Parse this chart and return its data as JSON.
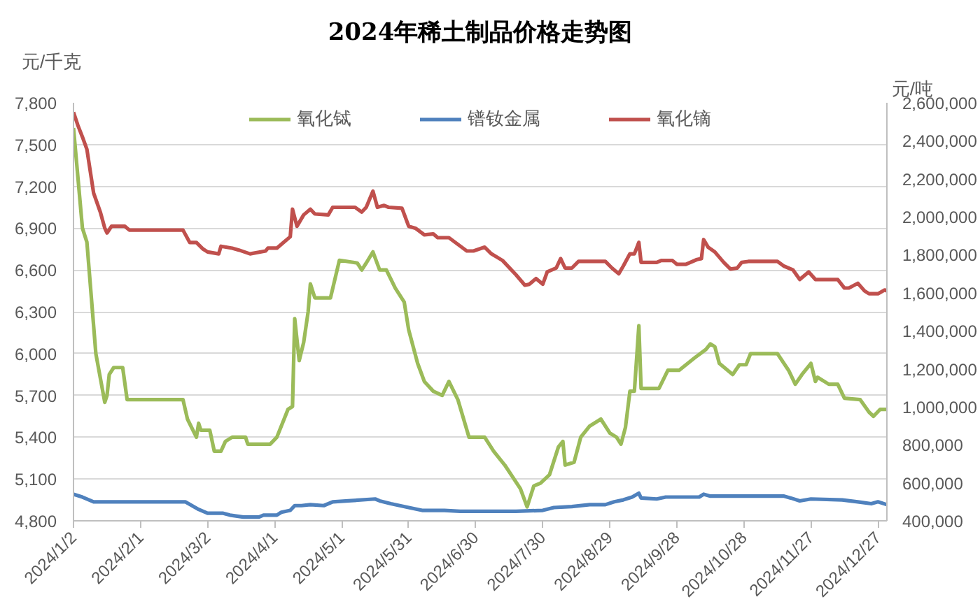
{
  "chart_data": {
    "type": "line",
    "title": "2024年稀土制品价格走势图",
    "ylabel": "元/千克",
    "y2label": "元/吨",
    "xlim": [
      "2024-01-02",
      "2024-12-31"
    ],
    "xticks": [
      {
        "value": "2024-01-02",
        "label": "2024/1/2"
      },
      {
        "value": "2024-02-01",
        "label": "2024/2/1"
      },
      {
        "value": "2024-03-02",
        "label": "2024/3/2"
      },
      {
        "value": "2024-04-01",
        "label": "2024/4/1"
      },
      {
        "value": "2024-05-01",
        "label": "2024/5/1"
      },
      {
        "value": "2024-05-31",
        "label": "2024/5/31"
      },
      {
        "value": "2024-06-30",
        "label": "2024/6/30"
      },
      {
        "value": "2024-07-30",
        "label": "2024/7/30"
      },
      {
        "value": "2024-08-29",
        "label": "2024/8/29"
      },
      {
        "value": "2024-09-28",
        "label": "2024/9/28"
      },
      {
        "value": "2024-10-28",
        "label": "2024/10/28"
      },
      {
        "value": "2024-11-27",
        "label": "2024/11/27"
      },
      {
        "value": "2024-12-27",
        "label": "2024/12/27"
      }
    ],
    "ylim": [
      4800,
      7800
    ],
    "yticks": [
      {
        "value": 4800,
        "label": "4,800"
      },
      {
        "value": 5100,
        "label": "5,100"
      },
      {
        "value": 5400,
        "label": "5,400"
      },
      {
        "value": 5700,
        "label": "5,700"
      },
      {
        "value": 6000,
        "label": "6,000"
      },
      {
        "value": 6300,
        "label": "6,300"
      },
      {
        "value": 6600,
        "label": "6,600"
      },
      {
        "value": 6900,
        "label": "6,900"
      },
      {
        "value": 7200,
        "label": "7,200"
      },
      {
        "value": 7500,
        "label": "7,500"
      },
      {
        "value": 7800,
        "label": "7,800"
      }
    ],
    "y2lim": [
      400000,
      2600000
    ],
    "y2ticks": [
      {
        "value": 400000,
        "label": "400,000"
      },
      {
        "value": 600000,
        "label": "600,000"
      },
      {
        "value": 800000,
        "label": "800,000"
      },
      {
        "value": 1000000,
        "label": "1,000,000"
      },
      {
        "value": 1200000,
        "label": "1,200,000"
      },
      {
        "value": 1400000,
        "label": "1,400,000"
      },
      {
        "value": 1600000,
        "label": "1,600,000"
      },
      {
        "value": 1800000,
        "label": "1,800,000"
      },
      {
        "value": 2000000,
        "label": "2,000,000"
      },
      {
        "value": 2200000,
        "label": "2,200,000"
      },
      {
        "value": 2400000,
        "label": "2,400,000"
      },
      {
        "value": 2600000,
        "label": "2,600,000"
      }
    ],
    "grid": "y",
    "legend": "top",
    "line_style": "solid",
    "series": [
      {
        "name": "氧化铽",
        "color": "#9bbb59",
        "x": [
          "2024-01-02",
          "2024-01-06",
          "2024-01-08",
          "2024-01-12",
          "2024-01-16",
          "2024-01-17",
          "2024-01-18",
          "2024-01-20",
          "2024-01-24",
          "2024-01-26",
          "2024-02-20",
          "2024-02-22",
          "2024-02-26",
          "2024-02-27",
          "2024-02-28",
          "2024-03-03",
          "2024-03-05",
          "2024-03-08",
          "2024-03-10",
          "2024-03-13",
          "2024-03-19",
          "2024-03-20",
          "2024-03-30",
          "2024-04-02",
          "2024-04-05",
          "2024-04-07",
          "2024-04-09",
          "2024-04-10",
          "2024-04-12",
          "2024-04-14",
          "2024-04-16",
          "2024-04-17",
          "2024-04-19",
          "2024-04-26",
          "2024-04-30",
          "2024-05-08",
          "2024-05-10",
          "2024-05-12",
          "2024-05-15",
          "2024-05-18",
          "2024-05-21",
          "2024-05-25",
          "2024-05-29",
          "2024-05-31",
          "2024-06-04",
          "2024-06-07",
          "2024-06-11",
          "2024-06-15",
          "2024-06-18",
          "2024-06-22",
          "2024-06-27",
          "2024-07-04",
          "2024-07-08",
          "2024-07-13",
          "2024-07-20",
          "2024-07-23",
          "2024-07-26",
          "2024-07-29",
          "2024-08-02",
          "2024-08-06",
          "2024-08-08",
          "2024-08-09",
          "2024-08-13",
          "2024-08-16",
          "2024-08-20",
          "2024-08-25",
          "2024-08-29",
          "2024-09-01",
          "2024-09-03",
          "2024-09-05",
          "2024-09-07",
          "2024-09-09",
          "2024-09-11",
          "2024-09-12",
          "2024-09-20",
          "2024-09-24",
          "2024-09-29",
          "2024-10-06",
          "2024-10-11",
          "2024-10-13",
          "2024-10-15",
          "2024-10-17",
          "2024-10-23",
          "2024-10-26",
          "2024-10-29",
          "2024-10-31",
          "2024-11-12",
          "2024-11-17",
          "2024-11-20",
          "2024-11-23",
          "2024-11-27",
          "2024-11-29",
          "2024-11-30",
          "2024-12-03",
          "2024-12-05",
          "2024-12-09",
          "2024-12-12",
          "2024-12-19",
          "2024-12-23",
          "2024-12-25",
          "2024-12-28",
          "2024-12-31"
        ],
        "values": [
          7620,
          6900,
          6800,
          6000,
          5650,
          5700,
          5850,
          5900,
          5900,
          5670,
          5670,
          5530,
          5400,
          5500,
          5450,
          5450,
          5300,
          5300,
          5370,
          5400,
          5400,
          5350,
          5350,
          5400,
          5520,
          5600,
          5620,
          6250,
          5950,
          6080,
          6300,
          6500,
          6400,
          6400,
          6670,
          6650,
          6600,
          6650,
          6730,
          6600,
          6600,
          6470,
          6370,
          6170,
          5930,
          5800,
          5730,
          5700,
          5800,
          5670,
          5400,
          5400,
          5300,
          5200,
          5030,
          4900,
          5050,
          5070,
          5130,
          5330,
          5370,
          5200,
          5220,
          5400,
          5480,
          5530,
          5430,
          5400,
          5350,
          5470,
          5730,
          5730,
          6200,
          5750,
          5750,
          5880,
          5880,
          5970,
          6030,
          6070,
          6050,
          5930,
          5850,
          5920,
          5920,
          6000,
          6000,
          5880,
          5780,
          5850,
          5930,
          5800,
          5830,
          5800,
          5780,
          5780,
          5680,
          5670,
          5580,
          5550,
          5600,
          5600
        ]
      },
      {
        "name": "镨钕金属",
        "color": "#4f81bd",
        "axis": "y2",
        "x": [
          "2024-01-02",
          "2024-01-06",
          "2024-01-11",
          "2024-02-21",
          "2024-02-24",
          "2024-02-27",
          "2024-03-02",
          "2024-03-09",
          "2024-03-12",
          "2024-03-18",
          "2024-03-25",
          "2024-03-27",
          "2024-04-02",
          "2024-04-04",
          "2024-04-08",
          "2024-04-10",
          "2024-04-13",
          "2024-04-17",
          "2024-04-23",
          "2024-04-27",
          "2024-05-04",
          "2024-05-16",
          "2024-05-18",
          "2024-05-23",
          "2024-05-31",
          "2024-06-06",
          "2024-06-16",
          "2024-06-23",
          "2024-07-18",
          "2024-07-30",
          "2024-08-04",
          "2024-08-12",
          "2024-08-20",
          "2024-08-27",
          "2024-08-31",
          "2024-09-04",
          "2024-09-08",
          "2024-09-11",
          "2024-09-12",
          "2024-09-19",
          "2024-09-23",
          "2024-10-08",
          "2024-10-10",
          "2024-10-13",
          "2024-11-15",
          "2024-11-18",
          "2024-11-22",
          "2024-11-27",
          "2024-12-11",
          "2024-12-18",
          "2024-12-24",
          "2024-12-27",
          "2024-12-31"
        ],
        "values": [
          540000,
          525000,
          500000,
          500000,
          480000,
          460000,
          440000,
          440000,
          430000,
          420000,
          420000,
          430000,
          430000,
          445000,
          455000,
          480000,
          480000,
          485000,
          480000,
          500000,
          505000,
          515000,
          505000,
          490000,
          470000,
          455000,
          455000,
          450000,
          450000,
          455000,
          470000,
          475000,
          485000,
          485000,
          500000,
          510000,
          525000,
          545000,
          520000,
          515000,
          525000,
          525000,
          540000,
          530000,
          530000,
          520000,
          505000,
          515000,
          510000,
          500000,
          490000,
          500000,
          485000
        ]
      },
      {
        "name": "氧化镝",
        "color": "#c0504d",
        "axis": "y2",
        "x": [
          "2024-01-02",
          "2024-01-04",
          "2024-01-06",
          "2024-01-08",
          "2024-01-11",
          "2024-01-14",
          "2024-01-16",
          "2024-01-17",
          "2024-01-19",
          "2024-01-25",
          "2024-01-27",
          "2024-02-20",
          "2024-02-23",
          "2024-02-26",
          "2024-02-29",
          "2024-03-02",
          "2024-03-07",
          "2024-03-08",
          "2024-03-13",
          "2024-03-16",
          "2024-03-21",
          "2024-03-28",
          "2024-03-29",
          "2024-04-02",
          "2024-04-05",
          "2024-04-08",
          "2024-04-09",
          "2024-04-11",
          "2024-04-14",
          "2024-04-17",
          "2024-04-19",
          "2024-04-25",
          "2024-04-27",
          "2024-05-07",
          "2024-05-10",
          "2024-05-12",
          "2024-05-15",
          "2024-05-17",
          "2024-05-20",
          "2024-05-22",
          "2024-05-28",
          "2024-05-31",
          "2024-06-03",
          "2024-06-07",
          "2024-06-11",
          "2024-06-13",
          "2024-06-18",
          "2024-06-22",
          "2024-06-26",
          "2024-06-29",
          "2024-07-04",
          "2024-07-07",
          "2024-07-12",
          "2024-07-18",
          "2024-07-22",
          "2024-07-24",
          "2024-07-27",
          "2024-07-30",
          "2024-08-01",
          "2024-08-05",
          "2024-08-07",
          "2024-08-09",
          "2024-08-12",
          "2024-08-15",
          "2024-08-27",
          "2024-08-30",
          "2024-09-02",
          "2024-09-04",
          "2024-09-07",
          "2024-09-09",
          "2024-09-11",
          "2024-09-12",
          "2024-09-19",
          "2024-09-21",
          "2024-09-26",
          "2024-09-28",
          "2024-10-02",
          "2024-10-07",
          "2024-10-09",
          "2024-10-10",
          "2024-10-12",
          "2024-10-15",
          "2024-10-19",
          "2024-10-22",
          "2024-10-25",
          "2024-10-27",
          "2024-10-30",
          "2024-11-12",
          "2024-11-15",
          "2024-11-19",
          "2024-11-22",
          "2024-11-26",
          "2024-11-29",
          "2024-12-09",
          "2024-12-12",
          "2024-12-14",
          "2024-12-18",
          "2024-12-21",
          "2024-12-23",
          "2024-12-27",
          "2024-12-30",
          "2024-12-31"
        ],
        "values": [
          2550000,
          2480000,
          2420000,
          2355000,
          2125000,
          2025000,
          1940000,
          1915000,
          1950000,
          1950000,
          1930000,
          1930000,
          1865000,
          1865000,
          1830000,
          1815000,
          1805000,
          1845000,
          1835000,
          1825000,
          1805000,
          1820000,
          1835000,
          1835000,
          1865000,
          1895000,
          2040000,
          1950000,
          2010000,
          2040000,
          2015000,
          2010000,
          2050000,
          2050000,
          2025000,
          2050000,
          2135000,
          2050000,
          2060000,
          2050000,
          2045000,
          1950000,
          1940000,
          1905000,
          1910000,
          1890000,
          1890000,
          1855000,
          1820000,
          1820000,
          1840000,
          1805000,
          1770000,
          1695000,
          1640000,
          1645000,
          1675000,
          1645000,
          1710000,
          1730000,
          1780000,
          1730000,
          1730000,
          1765000,
          1765000,
          1730000,
          1700000,
          1740000,
          1805000,
          1805000,
          1865000,
          1760000,
          1760000,
          1770000,
          1770000,
          1750000,
          1750000,
          1775000,
          1780000,
          1880000,
          1840000,
          1815000,
          1760000,
          1725000,
          1730000,
          1760000,
          1765000,
          1765000,
          1740000,
          1720000,
          1670000,
          1710000,
          1670000,
          1670000,
          1625000,
          1625000,
          1650000,
          1610000,
          1595000,
          1595000,
          1615000,
          1610000
        ]
      }
    ]
  }
}
